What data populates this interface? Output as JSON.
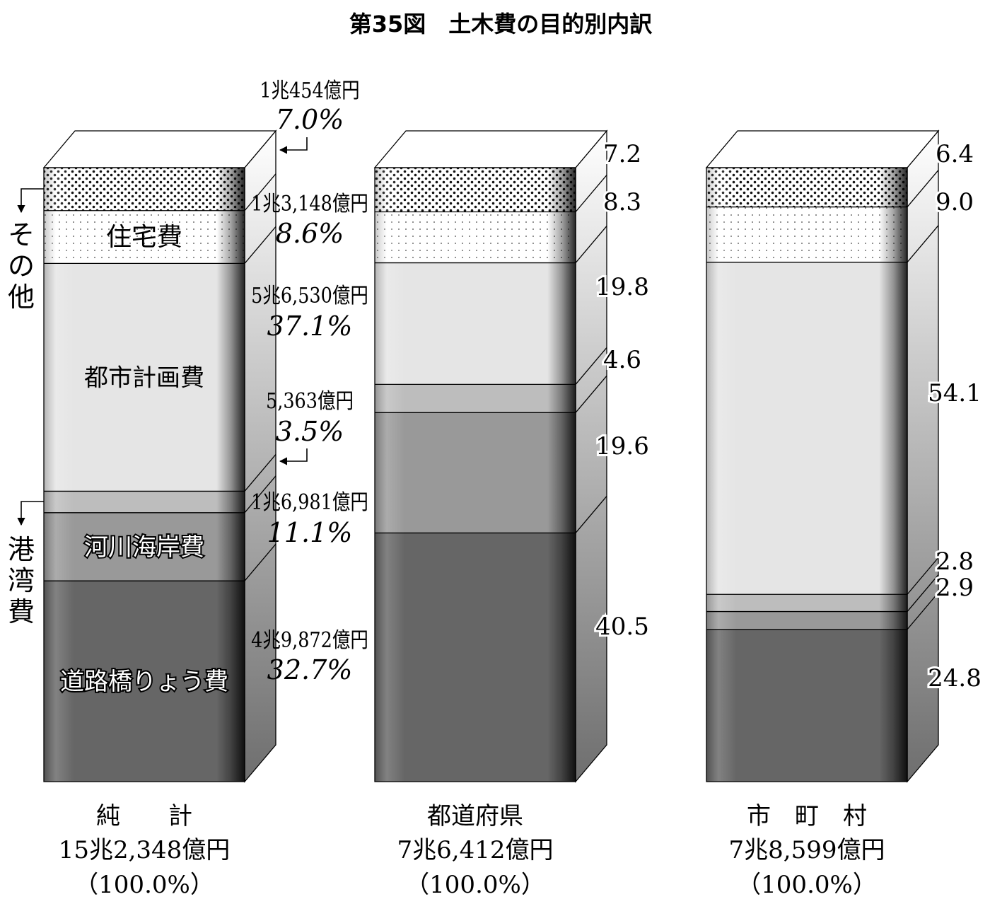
{
  "chart_data": {
    "type": "bar",
    "stacked": true,
    "title": "第35図　土木費の目的別内訳",
    "categories": [
      "純　　計",
      "都道府県",
      "市　町　村"
    ],
    "totals": [
      "15兆2,348億円",
      "7兆6,412億円",
      "7兆8,599億円"
    ],
    "total_pct": [
      "（100.0%）",
      "（100.0%）",
      "（100.0%）"
    ],
    "ylim": [
      0,
      100
    ],
    "series": [
      {
        "name": "道路橋りょう費",
        "values": [
          32.7,
          40.5,
          24.8
        ],
        "color": "#666666",
        "pattern": "none",
        "amount": "4兆9,872億円",
        "pct": "32.7%"
      },
      {
        "name": "河川海岸費",
        "values": [
          11.1,
          19.6,
          2.9
        ],
        "color": "#999999",
        "pattern": "none",
        "amount": "1兆6,981億円",
        "pct": "11.1%"
      },
      {
        "name": "港湾費",
        "values": [
          3.5,
          4.6,
          2.8
        ],
        "color": "#bdbdbd",
        "pattern": "none",
        "amount": "5,363億円",
        "pct": "3.5%"
      },
      {
        "name": "都市計画費",
        "values": [
          37.1,
          19.8,
          54.1
        ],
        "color": "#e5e5e5",
        "pattern": "none",
        "amount": "5兆6,530億円",
        "pct": "37.1%"
      },
      {
        "name": "住宅費",
        "values": [
          8.6,
          8.3,
          9.0
        ],
        "color": "#ffffff",
        "pattern": "sparse-dots",
        "amount": "1兆3,148億円",
        "pct": "8.6%"
      },
      {
        "name": "その他",
        "values": [
          7.0,
          7.2,
          6.4
        ],
        "color": "#ffffff",
        "pattern": "dense-dots",
        "amount": "1兆454億円",
        "pct": "7.0%"
      }
    ],
    "value_labels": {
      "prefecture": [
        "40.5",
        "19.6",
        "4.6",
        "19.8",
        "8.3",
        "7.2"
      ],
      "municipal": [
        "24.8",
        "2.9",
        "2.8",
        "54.1",
        "9.0",
        "6.4"
      ]
    },
    "inside_labels": {
      "road": "道路橋りょう費",
      "river": "河川海岸費",
      "urban": "都市計画費",
      "housing": "住宅費"
    },
    "side_labels": {
      "other": [
        "そ",
        "の",
        "他"
      ],
      "port": [
        "港",
        "湾",
        "費"
      ]
    }
  }
}
